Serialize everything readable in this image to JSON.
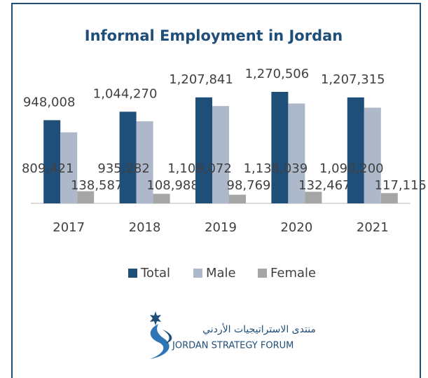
{
  "chart_data": {
    "type": "bar",
    "title": "Informal Employment in Jordan",
    "categories": [
      "2017",
      "2018",
      "2019",
      "2020",
      "2021"
    ],
    "series": [
      {
        "name": "Total",
        "color": "#1f4e79",
        "values": [
          948008,
          1044270,
          1207841,
          1270506,
          1207315
        ],
        "value_labels": [
          "948,008",
          "1,044,270",
          "1,207,841",
          "1,270,506",
          "1,207,315"
        ]
      },
      {
        "name": "Male",
        "color": "#adb9ca",
        "values": [
          809421,
          935282,
          1109072,
          1138039,
          1090200
        ],
        "value_labels": [
          "809,421",
          "935,282",
          "1,109,072",
          "1,138,039",
          "1,090,200"
        ]
      },
      {
        "name": "Female",
        "color": "#a5a5a5",
        "values": [
          138587,
          108988,
          98769,
          132467,
          117115
        ],
        "value_labels": [
          "138,587",
          "108,988",
          "98,769",
          "132,467",
          "117,115"
        ]
      }
    ],
    "legend": "bottom"
  },
  "logo": {
    "arabic": "منتدى الاستراتيجيات الأردني",
    "english": "JORDAN STRATEGY FORUM"
  }
}
